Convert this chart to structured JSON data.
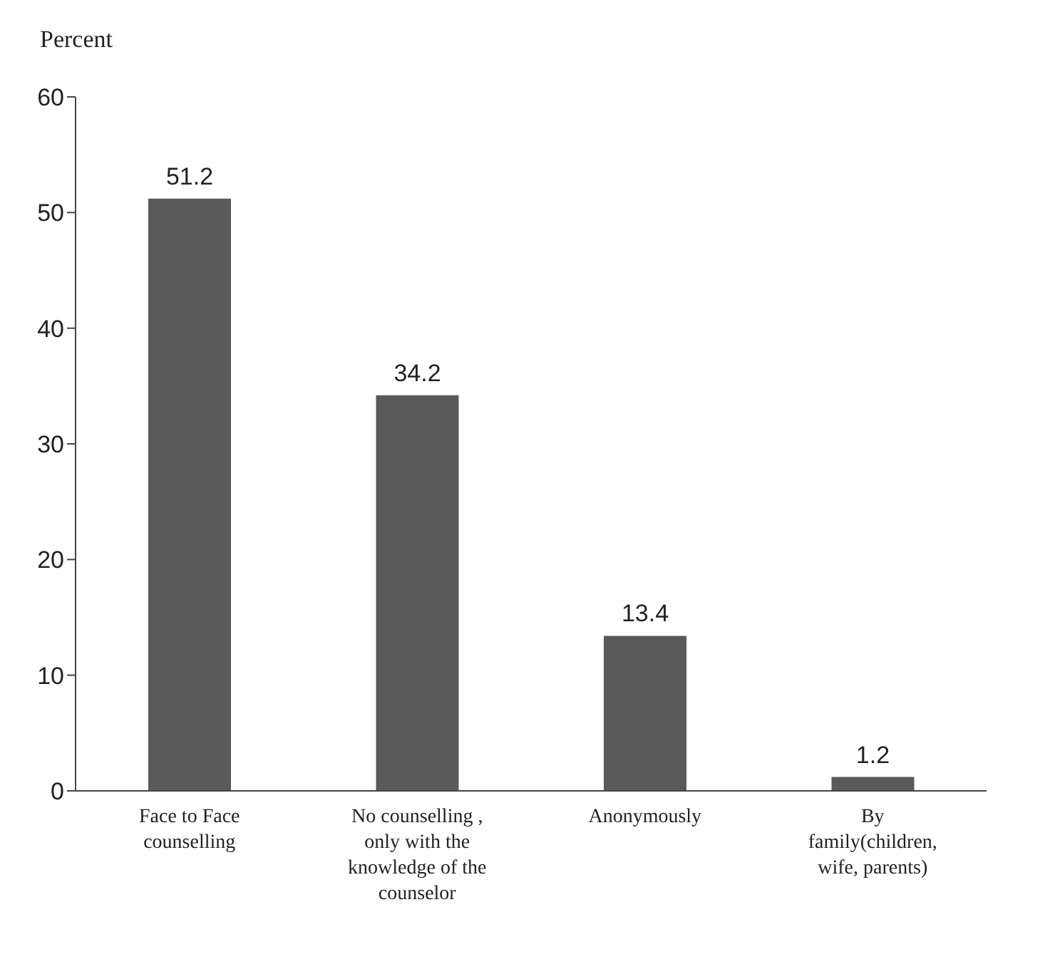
{
  "chart_data": {
    "type": "bar",
    "ylabel": "Percent",
    "categories": [
      "Face to Face counselling",
      "No counselling , only with the knowledge of the counselor",
      "Anonymously",
      "By family(children, wife, parents)"
    ],
    "values": [
      51.2,
      34.2,
      13.4,
      1.2
    ],
    "color": "#5a5a5a",
    "ylim": [
      0,
      60
    ],
    "yticks": [
      0,
      10,
      20,
      30,
      40,
      50,
      60
    ],
    "data_labels": true,
    "grid": false,
    "legend": false
  }
}
